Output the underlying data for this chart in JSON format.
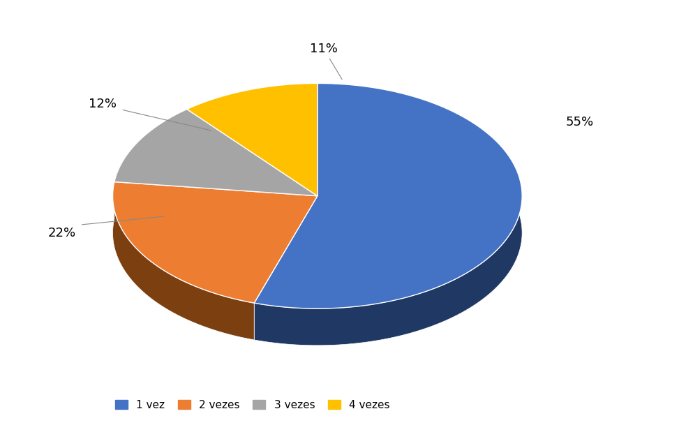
{
  "labels": [
    "1 vez",
    "2 vezes",
    "3 vezes",
    "4 vezes"
  ],
  "values": [
    55,
    22,
    12,
    11
  ],
  "colors": [
    "#4472C4",
    "#ED7D31",
    "#A5A5A5",
    "#FFC000"
  ],
  "side_colors": [
    "#1F3864",
    "#7B3F10",
    "#767676",
    "#9A7600"
  ],
  "legend_labels": [
    "1 vez",
    "2 vezes",
    "3 vezes",
    "4 vezes"
  ],
  "background_color": "#ffffff",
  "figsize": [
    9.83,
    6.29
  ]
}
